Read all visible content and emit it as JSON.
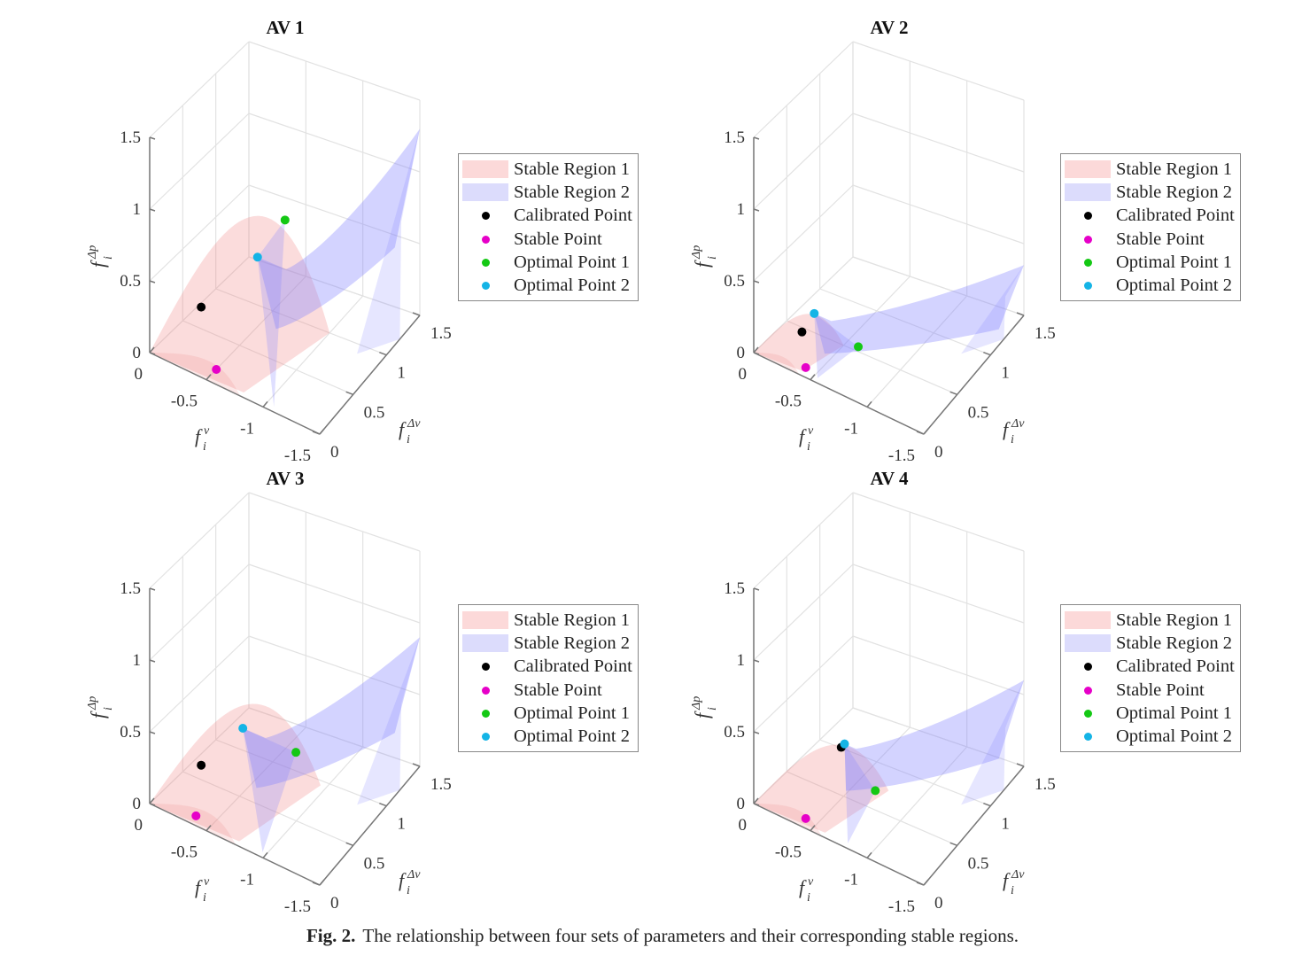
{
  "caption": {
    "label": "Fig. 2.",
    "text": "The relationship between four sets of parameters and their corresponding stable regions."
  },
  "legend": {
    "items": [
      {
        "label": "Stable Region 1",
        "kind": "patch",
        "color": "#fcd9d9"
      },
      {
        "label": "Stable Region 2",
        "kind": "patch",
        "color": "#dcdcfc"
      },
      {
        "label": "Calibrated Point",
        "kind": "marker",
        "color": "#000000"
      },
      {
        "label": "Stable Point",
        "kind": "marker",
        "color": "#e600c8"
      },
      {
        "label": "Optimal Point 1",
        "kind": "marker",
        "color": "#14c814"
      },
      {
        "label": "Optimal Point 2",
        "kind": "marker",
        "color": "#14b4e6"
      }
    ]
  },
  "colors": {
    "region1_fill": "#f08080",
    "region2_fill": "#8080ff",
    "grid": "#e2e2e2",
    "axis": "#777777"
  },
  "chart_data": [
    {
      "type": "surface3d",
      "title": "AV 1",
      "xlabel": "f_i^v",
      "ylabel": "f_i^Δv",
      "zlabel": "f_i^Δp",
      "xlim": [
        -1.5,
        0
      ],
      "ylim": [
        0,
        1.5
      ],
      "zlim": [
        0,
        1.5
      ],
      "xticks": [
        "0",
        "-0.5",
        "-1",
        "-1.5"
      ],
      "yticks": [
        "0",
        "0.5",
        "1",
        "1.5"
      ],
      "zticks": [
        "0",
        "0.5",
        "1",
        "1.5"
      ],
      "grid": true,
      "legend_position": "right",
      "region1": {
        "fv_max": -1.0,
        "dv_max": 1.0,
        "dp_peak": 0.8
      },
      "region2": {
        "fv_start": -0.85,
        "fv_max": -1.5,
        "dv_max": 1.5,
        "dp_peak": 1.3
      },
      "points": {
        "calibrated": {
          "fv": -0.25,
          "dv": 0.35,
          "dp": 0.25
        },
        "stable": {
          "fv": -0.5,
          "dv": 0.15,
          "dp": 0.0
        },
        "optimal1": {
          "fv": -0.55,
          "dv": 1.1,
          "dp": 0.6
        },
        "optimal2": {
          "fv": -0.6,
          "dv": 0.6,
          "dp": 0.6
        }
      }
    },
    {
      "type": "surface3d",
      "title": "AV 2",
      "xlabel": "f_i^v",
      "ylabel": "f_i^Δv",
      "zlabel": "f_i^Δp",
      "xlim": [
        -1.5,
        0
      ],
      "ylim": [
        0,
        1.5
      ],
      "zlim": [
        0,
        1.5
      ],
      "xticks": [
        "0",
        "-0.5",
        "-1",
        "-1.5"
      ],
      "yticks": [
        "0",
        "0.5",
        "1",
        "1.5"
      ],
      "zticks": [
        "0",
        "0.5",
        "1",
        "1.5"
      ],
      "grid": true,
      "legend_position": "right",
      "region1": {
        "fv_max": -0.5,
        "dv_max": 0.5,
        "dp_peak": 0.2
      },
      "region2": {
        "fv_start": -0.45,
        "fv_max": -1.5,
        "dv_max": 1.5,
        "dp_peak": 0.35
      },
      "points": {
        "calibrated": {
          "fv": -0.25,
          "dv": 0.3,
          "dp": 0.1
        },
        "stable": {
          "fv": -0.4,
          "dv": 0.1,
          "dp": 0.0
        },
        "optimal1": {
          "fv": -0.6,
          "dv": 0.55,
          "dp": 0.0
        },
        "optimal2": {
          "fv": -0.3,
          "dv": 0.4,
          "dp": 0.2
        }
      }
    },
    {
      "type": "surface3d",
      "title": "AV 3",
      "xlabel": "f_i^v",
      "ylabel": "f_i^Δv",
      "zlabel": "f_i^Δp",
      "xlim": [
        -1.5,
        0
      ],
      "ylim": [
        0,
        1.5
      ],
      "zlim": [
        0,
        1.5
      ],
      "xticks": [
        "0",
        "-0.5",
        "-1",
        "-1.5"
      ],
      "yticks": [
        "0",
        "0.5",
        "1",
        "1.5"
      ],
      "zticks": [
        "0",
        "0.5",
        "1",
        "1.5"
      ],
      "grid": true,
      "legend_position": "right",
      "region1": {
        "fv_max": -0.95,
        "dv_max": 0.95,
        "dp_peak": 0.55
      },
      "region2": {
        "fv_start": -0.7,
        "fv_max": -1.5,
        "dv_max": 1.5,
        "dp_peak": 0.9
      },
      "points": {
        "calibrated": {
          "fv": -0.25,
          "dv": 0.35,
          "dp": 0.2
        },
        "stable": {
          "fv": -0.35,
          "dv": 0.1,
          "dp": 0.0
        },
        "optimal1": {
          "fv": -0.85,
          "dv": 0.75,
          "dp": 0.3
        },
        "optimal2": {
          "fv": -0.5,
          "dv": 0.55,
          "dp": 0.45
        }
      }
    },
    {
      "type": "surface3d",
      "title": "AV 4",
      "xlabel": "f_i^v",
      "ylabel": "f_i^Δv",
      "zlabel": "f_i^Δp",
      "xlim": [
        -1.5,
        0
      ],
      "ylim": [
        0,
        1.5
      ],
      "zlim": [
        0,
        1.5
      ],
      "xticks": [
        "0",
        "-0.5",
        "-1",
        "-1.5"
      ],
      "yticks": [
        "0",
        "0.5",
        "1",
        "1.5"
      ],
      "zticks": [
        "0",
        "0.5",
        "1",
        "1.5"
      ],
      "grid": true,
      "legend_position": "right",
      "region1": {
        "fv_max": -0.75,
        "dv_max": 0.75,
        "dp_peak": 0.3
      },
      "region2": {
        "fv_start": -0.55,
        "fv_max": -1.5,
        "dv_max": 1.5,
        "dp_peak": 0.6
      },
      "points": {
        "calibrated": {
          "fv": -0.45,
          "dv": 0.55,
          "dp": 0.3
        },
        "stable": {
          "fv": -0.4,
          "dv": 0.1,
          "dp": 0.0
        },
        "optimal1": {
          "fv": -0.75,
          "dv": 0.55,
          "dp": 0.1
        },
        "optimal2": {
          "fv": -0.45,
          "dv": 0.6,
          "dp": 0.3
        }
      }
    }
  ]
}
